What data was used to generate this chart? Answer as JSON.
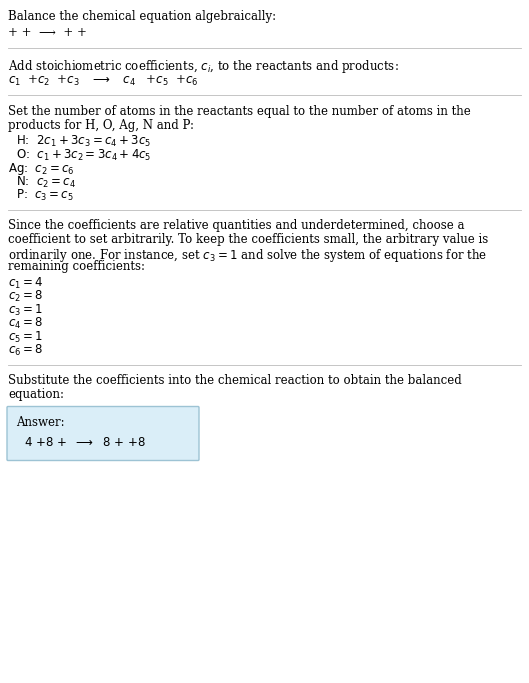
{
  "title": "Balance the chemical equation algebraically:",
  "line1": "+ +  ⟶  + +",
  "section2_header_plain": "Add stoichiometric coefficients, ",
  "section2_header_ci": "c",
  "section2_header_ci_sub": "i",
  "section2_header_rest": ", to the reactants and products:",
  "section3_header": "Set the number of atoms in the reactants equal to the number of atoms in the\nproducts for H, O, Ag, N and P:",
  "section4_header_line1": "Since the coefficients are relative quantities and underdetermined, choose a",
  "section4_header_line2": "coefficient to set arbitrarily. To keep the coefficients small, the arbitrary value is",
  "section4_header_line3": "ordinarily one. For instance, set ",
  "section4_header_line4": "remaining coefficients:",
  "section5_header": "Substitute the coefficients into the chemical reaction to obtain the balanced\nequation:",
  "answer_label": "Answer:",
  "bg_color": "#ffffff",
  "text_color": "#000000",
  "answer_box_facecolor": "#daeef8",
  "answer_box_edgecolor": "#9dc3d4",
  "separator_color": "#bbbbbb",
  "font_size": 8.5,
  "math_font_size": 8.5
}
